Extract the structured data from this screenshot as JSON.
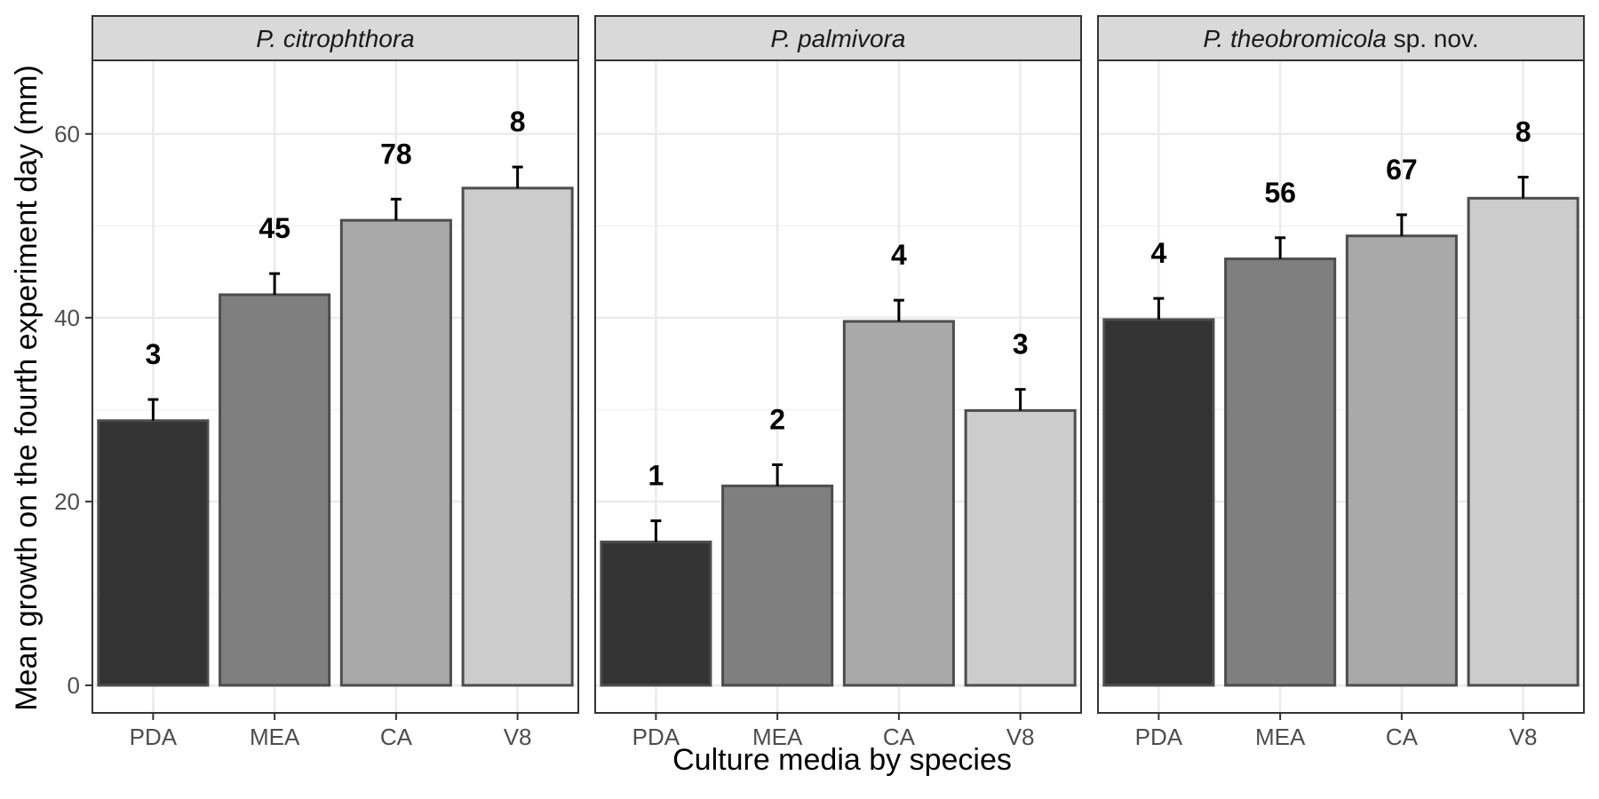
{
  "chart_data": {
    "type": "bar",
    "xlabel": "Culture media by species",
    "ylabel": "Mean growth on the fourth experiment day (mm)",
    "ylim": [
      -3,
      68
    ],
    "yticks": [
      0,
      20,
      40,
      60
    ],
    "yticks_labels": [
      "0",
      "20",
      "40",
      "60"
    ],
    "grid": true,
    "categories": [
      "PDA",
      "MEA",
      "CA",
      "V8"
    ],
    "fill_colors": [
      "#333333",
      "#7f7f7f",
      "#a9a9a9",
      "#cccccc"
    ],
    "outline_color": "#4d4d4d",
    "facets": [
      {
        "title_italic": "P. citrophthora",
        "title_suffix": "",
        "values": [
          28.8,
          42.5,
          50.6,
          54.1
        ],
        "errors": [
          2.3,
          2.3,
          2.3,
          2.3
        ],
        "labels": [
          "3",
          "45",
          "78",
          "8"
        ]
      },
      {
        "title_italic": "P. palmivora",
        "title_suffix": "",
        "values": [
          15.6,
          21.7,
          39.6,
          29.9
        ],
        "errors": [
          2.3,
          2.3,
          2.3,
          2.3
        ],
        "labels": [
          "1",
          "2",
          "4",
          "3"
        ]
      },
      {
        "title_italic": "P. theobromicola",
        "title_suffix": " sp. nov.",
        "values": [
          39.8,
          46.4,
          48.9,
          53.0
        ],
        "errors": [
          2.3,
          2.3,
          2.3,
          2.3
        ],
        "labels": [
          "4",
          "56",
          "67",
          "8"
        ]
      }
    ]
  }
}
